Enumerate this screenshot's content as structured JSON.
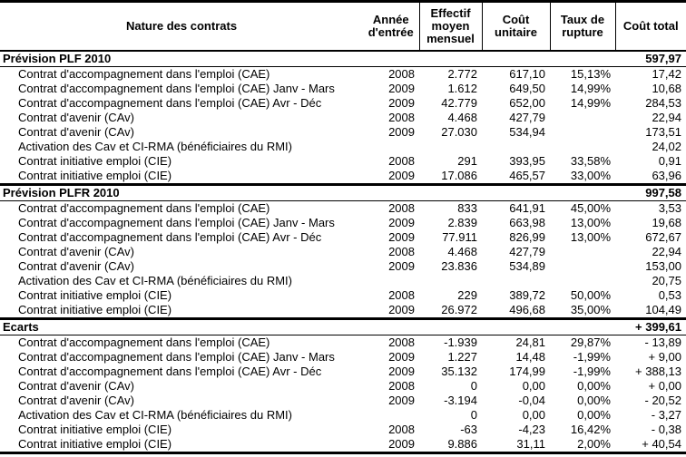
{
  "table": {
    "header": {
      "nature": "Nature des contrats",
      "annee": "Année d'entrée",
      "effectif": "Effectif moyen mensuel",
      "cout_unitaire": "Coût unitaire",
      "taux_rupture": "Taux de rupture",
      "cout_total": "Coût total"
    },
    "sections": [
      {
        "title": "Prévision PLF 2010",
        "total": "597,97",
        "rows": [
          {
            "label": "Contrat d'accompagnement dans l'emploi (CAE)",
            "annee": "2008",
            "effectif": "2.772",
            "cout_unitaire": "617,10",
            "taux_rupture": "15,13%",
            "cout_total": "17,42"
          },
          {
            "label": "Contrat d'accompagnement dans l'emploi (CAE) Janv - Mars",
            "annee": "2009",
            "effectif": "1.612",
            "cout_unitaire": "649,50",
            "taux_rupture": "14,99%",
            "cout_total": "10,68"
          },
          {
            "label": "Contrat d'accompagnement dans l'emploi (CAE) Avr - Déc",
            "annee": "2009",
            "effectif": "42.779",
            "cout_unitaire": "652,00",
            "taux_rupture": "14,99%",
            "cout_total": "284,53"
          },
          {
            "label": "Contrat d'avenir (CAv)",
            "annee": "2008",
            "effectif": "4.468",
            "cout_unitaire": "427,79",
            "taux_rupture": "",
            "cout_total": "22,94"
          },
          {
            "label": "Contrat d'avenir (CAv)",
            "annee": "2009",
            "effectif": "27.030",
            "cout_unitaire": "534,94",
            "taux_rupture": "",
            "cout_total": "173,51"
          },
          {
            "label": "Activation des Cav et CI-RMA (bénéficiaires du RMI)",
            "annee": "",
            "effectif": "",
            "cout_unitaire": "",
            "taux_rupture": "",
            "cout_total": "24,02"
          },
          {
            "label": "Contrat initiative emploi (CIE)",
            "annee": "2008",
            "effectif": "291",
            "cout_unitaire": "393,95",
            "taux_rupture": "33,58%",
            "cout_total": "0,91"
          },
          {
            "label": "Contrat initiative emploi (CIE)",
            "annee": "2009",
            "effectif": "17.086",
            "cout_unitaire": "465,57",
            "taux_rupture": "33,00%",
            "cout_total": "63,96"
          }
        ]
      },
      {
        "title": "Prévision PLFR 2010",
        "total": "997,58",
        "rows": [
          {
            "label": "Contrat d'accompagnement dans l'emploi (CAE)",
            "annee": "2008",
            "effectif": "833",
            "cout_unitaire": "641,91",
            "taux_rupture": "45,00%",
            "cout_total": "3,53"
          },
          {
            "label": "Contrat d'accompagnement dans l'emploi (CAE) Janv - Mars",
            "annee": "2009",
            "effectif": "2.839",
            "cout_unitaire": "663,98",
            "taux_rupture": "13,00%",
            "cout_total": "19,68"
          },
          {
            "label": "Contrat d'accompagnement dans l'emploi (CAE) Avr - Déc",
            "annee": "2009",
            "effectif": "77.911",
            "cout_unitaire": "826,99",
            "taux_rupture": "13,00%",
            "cout_total": "672,67"
          },
          {
            "label": "Contrat d'avenir (CAv)",
            "annee": "2008",
            "effectif": "4.468",
            "cout_unitaire": "427,79",
            "taux_rupture": "",
            "cout_total": "22,94"
          },
          {
            "label": "Contrat d'avenir (CAv)",
            "annee": "2009",
            "effectif": "23.836",
            "cout_unitaire": "534,89",
            "taux_rupture": "",
            "cout_total": "153,00"
          },
          {
            "label": "Activation des Cav et CI-RMA (bénéficiaires du RMI)",
            "annee": "",
            "effectif": "",
            "cout_unitaire": "",
            "taux_rupture": "",
            "cout_total": "20,75"
          },
          {
            "label": "Contrat initiative emploi (CIE)",
            "annee": "2008",
            "effectif": "229",
            "cout_unitaire": "389,72",
            "taux_rupture": "50,00%",
            "cout_total": "0,53"
          },
          {
            "label": "Contrat initiative emploi (CIE)",
            "annee": "2009",
            "effectif": "26.972",
            "cout_unitaire": "496,68",
            "taux_rupture": "35,00%",
            "cout_total": "104,49"
          }
        ]
      },
      {
        "title": "Ecarts",
        "total": "+ 399,61",
        "rows": [
          {
            "label": "Contrat d'accompagnement dans l'emploi (CAE)",
            "annee": "2008",
            "effectif": "-1.939",
            "cout_unitaire": "24,81",
            "taux_rupture": "29,87%",
            "cout_total": "- 13,89"
          },
          {
            "label": "Contrat d'accompagnement dans l'emploi (CAE) Janv - Mars",
            "annee": "2009",
            "effectif": "1.227",
            "cout_unitaire": "14,48",
            "taux_rupture": "-1,99%",
            "cout_total": "+ 9,00"
          },
          {
            "label": "Contrat d'accompagnement dans l'emploi (CAE) Avr - Déc",
            "annee": "2009",
            "effectif": "35.132",
            "cout_unitaire": "174,99",
            "taux_rupture": "-1,99%",
            "cout_total": "+ 388,13"
          },
          {
            "label": "Contrat d'avenir (CAv)",
            "annee": "2008",
            "effectif": "0",
            "cout_unitaire": "0,00",
            "taux_rupture": "0,00%",
            "cout_total": "+ 0,00"
          },
          {
            "label": "Contrat d'avenir (CAv)",
            "annee": "2009",
            "effectif": "-3.194",
            "cout_unitaire": "-0,04",
            "taux_rupture": "0,00%",
            "cout_total": "- 20,52"
          },
          {
            "label": "Activation des Cav et CI-RMA (bénéficiaires du RMI)",
            "annee": "",
            "effectif": "0",
            "cout_unitaire": "0,00",
            "taux_rupture": "0,00%",
            "cout_total": "- 3,27"
          },
          {
            "label": "Contrat initiative emploi (CIE)",
            "annee": "2008",
            "effectif": "-63",
            "cout_unitaire": "-4,23",
            "taux_rupture": "16,42%",
            "cout_total": "- 0,38"
          },
          {
            "label": "Contrat initiative emploi (CIE)",
            "annee": "2009",
            "effectif": "9.886",
            "cout_unitaire": "31,11",
            "taux_rupture": "2,00%",
            "cout_total": "+ 40,54"
          }
        ]
      }
    ]
  }
}
